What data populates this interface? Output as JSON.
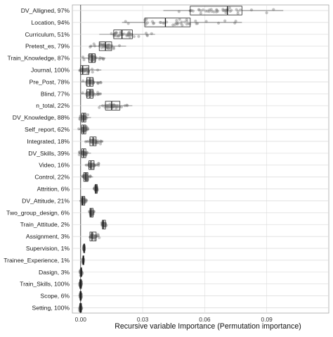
{
  "chart_data": {
    "type": "box",
    "xlabel": "Recursive variable Importance (Permutation importance)",
    "ylabel": "",
    "xlim": [
      -0.004,
      0.12
    ],
    "xticks": [
      0.0,
      0.03,
      0.06,
      0.09
    ],
    "xtick_labels": [
      "0.00",
      "0.03",
      "0.06",
      "0.09"
    ],
    "grid": true,
    "categories": [
      "DV_Alligned, 97%",
      "Location, 94%",
      "Curriculum, 51%",
      "Pretest_es, 79%",
      "Train_Knowledge, 87%",
      "Journal, 100%",
      "Pre_Post, 78%",
      "Blind, 77%",
      "n_total, 22%",
      "DV_Knowledge, 88%",
      "Self_report, 62%",
      "Integrated, 18%",
      "DV_Skills, 39%",
      "Video, 16%",
      "Control, 22%",
      "Attrition, 6%",
      "DV_Attitude, 21%",
      "Two_group_design, 6%",
      "Train_Attitude, 2%",
      "Assignment, 3%",
      "Supervision, 1%",
      "Trainee_Experience, 1%",
      "Dasign, 3%",
      "Train_Skills, 100%",
      "Scope, 6%",
      "Setting, 100%"
    ],
    "boxes": [
      {
        "q1": 0.053,
        "median": 0.071,
        "q3": 0.078,
        "whisker_low": 0.04,
        "whisker_high": 0.098
      },
      {
        "q1": 0.031,
        "median": 0.041,
        "q3": 0.053,
        "whisker_low": 0.02,
        "whisker_high": 0.078
      },
      {
        "q1": 0.016,
        "median": 0.02,
        "q3": 0.025,
        "whisker_low": 0.009,
        "whisker_high": 0.036
      },
      {
        "q1": 0.009,
        "median": 0.012,
        "q3": 0.015,
        "whisker_low": 0.004,
        "whisker_high": 0.022
      },
      {
        "q1": 0.004,
        "median": 0.0055,
        "q3": 0.007,
        "whisker_low": 0.0005,
        "whisker_high": 0.012
      },
      {
        "q1": 0.0,
        "median": 0.001,
        "q3": 0.004,
        "whisker_low": -0.001,
        "whisker_high": 0.01
      },
      {
        "q1": 0.003,
        "median": 0.0045,
        "q3": 0.006,
        "whisker_low": 0.0,
        "whisker_high": 0.01
      },
      {
        "q1": 0.003,
        "median": 0.0045,
        "q3": 0.006,
        "whisker_low": 0.0,
        "whisker_high": 0.01
      },
      {
        "q1": 0.012,
        "median": 0.015,
        "q3": 0.019,
        "whisker_low": 0.009,
        "whisker_high": 0.025
      },
      {
        "q1": 0.0005,
        "median": 0.0015,
        "q3": 0.0025,
        "whisker_low": -0.001,
        "whisker_high": 0.005
      },
      {
        "q1": 0.0005,
        "median": 0.0015,
        "q3": 0.0025,
        "whisker_low": -0.001,
        "whisker_high": 0.004
      },
      {
        "q1": 0.0045,
        "median": 0.006,
        "q3": 0.0075,
        "whisker_low": 0.002,
        "whisker_high": 0.011
      },
      {
        "q1": 0.0005,
        "median": 0.0015,
        "q3": 0.0025,
        "whisker_low": -0.001,
        "whisker_high": 0.005
      },
      {
        "q1": 0.004,
        "median": 0.005,
        "q3": 0.0065,
        "whisker_low": 0.002,
        "whisker_high": 0.009
      },
      {
        "q1": 0.0015,
        "median": 0.0025,
        "q3": 0.0035,
        "whisker_low": 0.0005,
        "whisker_high": 0.006
      },
      {
        "q1": 0.007,
        "median": 0.0075,
        "q3": 0.008,
        "whisker_low": 0.0065,
        "whisker_high": 0.0085
      },
      {
        "q1": 0.0005,
        "median": 0.001,
        "q3": 0.002,
        "whisker_low": -0.0005,
        "whisker_high": 0.003
      },
      {
        "q1": 0.0045,
        "median": 0.005,
        "q3": 0.006,
        "whisker_low": 0.004,
        "whisker_high": 0.0065
      },
      {
        "q1": 0.0105,
        "median": 0.011,
        "q3": 0.012,
        "whisker_low": 0.01,
        "whisker_high": 0.0125
      },
      {
        "q1": 0.0045,
        "median": 0.0055,
        "q3": 0.0075,
        "whisker_low": 0.0045,
        "whisker_high": 0.009
      },
      {
        "q1": 0.0015,
        "median": 0.0016,
        "q3": 0.0017,
        "whisker_low": 0.0015,
        "whisker_high": 0.0018
      },
      {
        "q1": 0.0011,
        "median": 0.0012,
        "q3": 0.0013,
        "whisker_low": 0.0011,
        "whisker_high": 0.0014
      },
      {
        "q1": 0.0,
        "median": 0.0002,
        "q3": 0.0005,
        "whisker_low": -0.0004,
        "whisker_high": 0.0008
      },
      {
        "q1": -0.0004,
        "median": 0.0,
        "q3": 0.0004,
        "whisker_low": -0.0006,
        "whisker_high": 0.0006
      },
      {
        "q1": -0.0003,
        "median": 0.0,
        "q3": 0.0003,
        "whisker_low": -0.0004,
        "whisker_high": 0.0004
      },
      {
        "q1": -0.0004,
        "median": 0.0,
        "q3": 0.0004,
        "whisker_low": -0.0006,
        "whisker_high": 0.0006
      }
    ],
    "jitter_points_per_box": 40,
    "colors": {
      "points": "#7a7a7a",
      "box": "#222222",
      "grid": "#d8d8d8"
    }
  }
}
